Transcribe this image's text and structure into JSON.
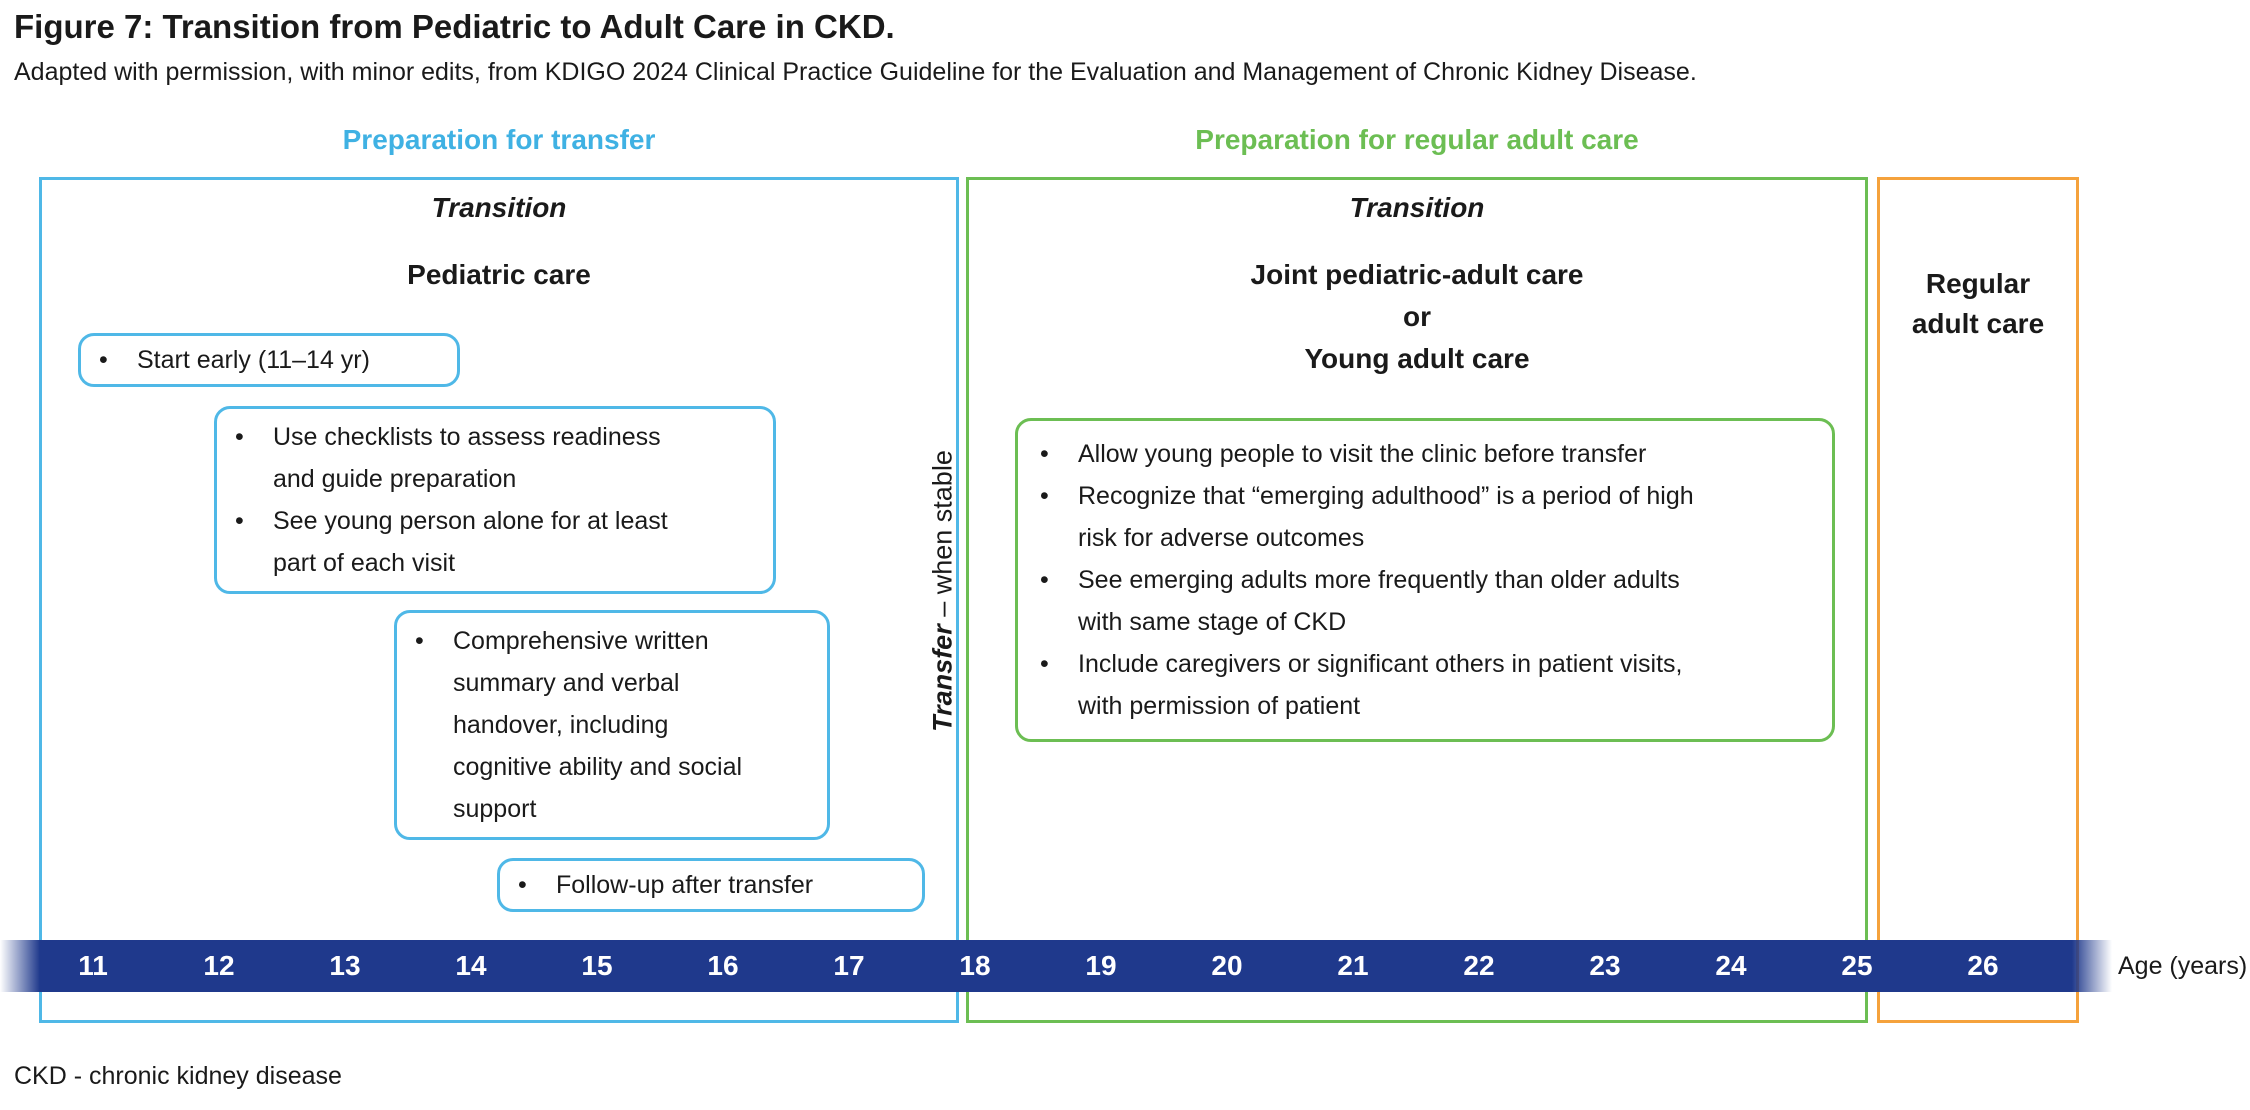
{
  "figure": {
    "title": "Figure 7: Transition from Pediatric to Adult Care in CKD.",
    "subtitle": "Adapted with permission, with minor edits, from KDIGO 2024 Clinical Practice Guideline for the Evaluation and Management of Chronic Kidney Disease.",
    "footnote": "CKD - chronic kidney disease"
  },
  "colors": {
    "blue": "#4fb8e7",
    "green": "#6cbe53",
    "orange": "#f5a23c",
    "navy": "#1f398c",
    "text": "#1a1a1a"
  },
  "phases": {
    "pediatric": {
      "header": "Preparation for transfer",
      "stage_label": "Transition",
      "care_label": "Pediatric care",
      "callouts": [
        {
          "bullets": [
            "Start early (11–14 yr)"
          ]
        },
        {
          "bullets": [
            "Use checklists to assess readiness and guide preparation",
            "See young person alone for at least part of each visit"
          ]
        },
        {
          "bullets": [
            "Comprehensive written summary and verbal handover, including cognitive ability and social support"
          ]
        },
        {
          "bullets": [
            "Follow-up after transfer"
          ]
        }
      ]
    },
    "transfer": {
      "label_bold": "Transfer",
      "label_rest": " – when stable"
    },
    "joint": {
      "header": "Preparation for regular adult care",
      "stage_label": "Transition",
      "care_label_lines": [
        "Joint pediatric-adult care",
        "or",
        "Young adult care"
      ],
      "callout": {
        "bullets": [
          "Allow young people to visit the clinic before transfer",
          "Recognize that “emerging adulthood” is a period of high risk for adverse outcomes",
          "See emerging adults more frequently than older adults with same stage of CKD",
          "Include caregivers or significant others in patient visits, with permission of patient"
        ]
      }
    },
    "adult": {
      "care_label": "Regular adult care"
    }
  },
  "age_bar": {
    "ages": [
      "11",
      "12",
      "13",
      "14",
      "15",
      "16",
      "17",
      "18",
      "19",
      "20",
      "21",
      "22",
      "23",
      "24",
      "25",
      "26"
    ],
    "axis_label": "Age (years)"
  }
}
